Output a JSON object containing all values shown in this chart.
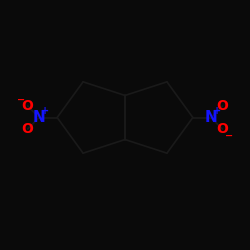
{
  "bg_color": "#0a0a0a",
  "bond_color": "#1a1a1a",
  "bond_width": 1.2,
  "atom_colors": {
    "N": "#1414ff",
    "O": "#ff0000",
    "C": "#111111"
  },
  "font_size_N": 11,
  "font_size_O": 10,
  "font_size_charge": 7,
  "fig_w": 2.5,
  "fig_h": 2.5,
  "dpi": 100
}
